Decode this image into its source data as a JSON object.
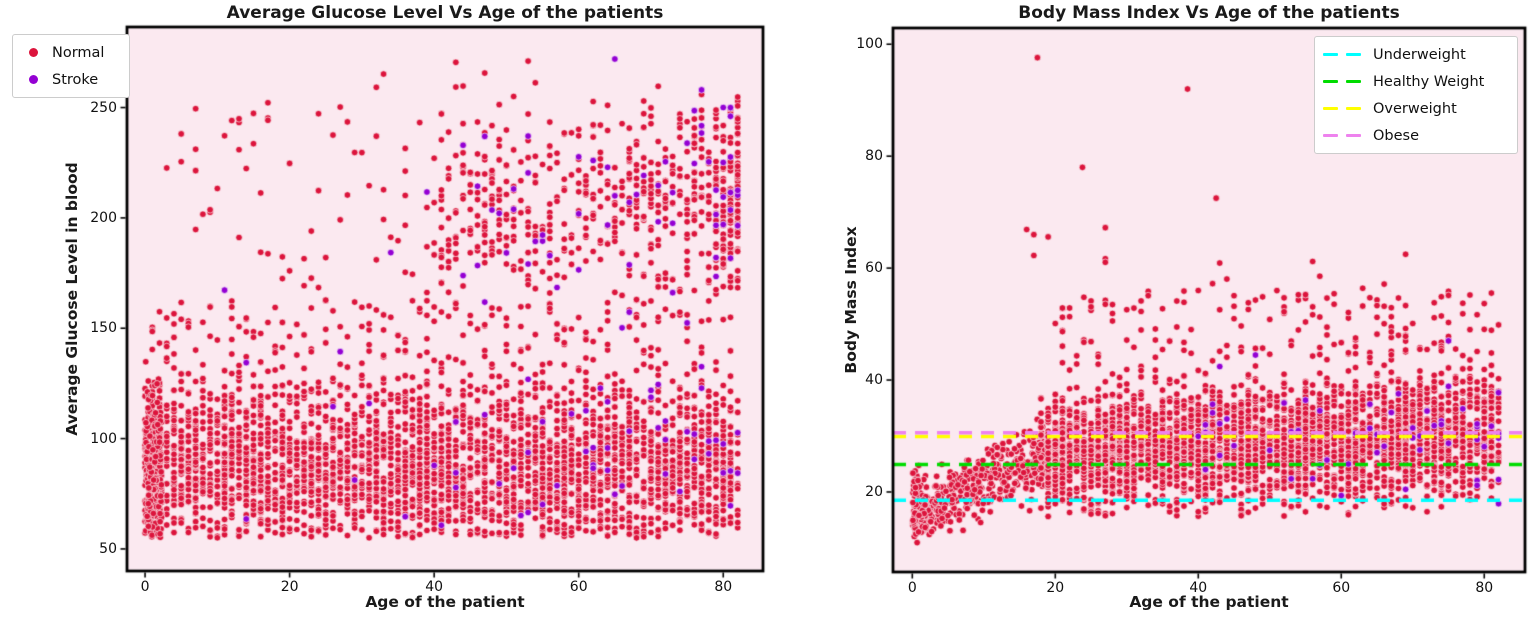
{
  "figure": {
    "background": "#FFFFFF",
    "axes_background": "#FBE9F0",
    "spine_color": "#000000",
    "text_color": "#1A1A1A",
    "legend_background": "#FFFFFF",
    "legend_border": "#CCCCCC",
    "normal_color": "#DC143C",
    "stroke_color": "#9400D3"
  },
  "chart_data": [
    {
      "type": "scatter",
      "title": "Average Glucose Level Vs Age of the patients",
      "xlabel": "Age of the patient",
      "ylabel": "Average Glucose Level in blood",
      "xlim": [
        -2.5,
        85.5
      ],
      "ylim": [
        40,
        286.5
      ],
      "xticks": [
        0,
        20,
        40,
        60,
        80
      ],
      "yticks": [
        50,
        100,
        150,
        200,
        250
      ],
      "grid": false,
      "legend": {
        "position": "outside upper left",
        "items": [
          {
            "label": "Normal",
            "color": "#DC143C",
            "marker": "dot"
          },
          {
            "label": "Stroke",
            "color": "#9400D3",
            "marker": "dot"
          }
        ]
      },
      "series": [
        {
          "name": "Normal",
          "color": "#DC143C",
          "clusters": [
            {
              "n": 2300,
              "x": {
                "min": 0,
                "max": 82,
                "int": true
              },
              "y": {
                "dist": "gauss",
                "mean": 86,
                "sd": 17,
                "min": 55,
                "max": 130
              }
            },
            {
              "n": 750,
              "x": {
                "min": 0,
                "max": 82,
                "int": true
              },
              "y": {
                "dist": "uniform",
                "min": 55,
                "max": 126
              }
            },
            {
              "n": 280,
              "x": {
                "min": 0.08,
                "max": 2.3
              },
              "y": {
                "dist": "gauss",
                "mean": 86,
                "sd": 20,
                "min": 55,
                "max": 135
              }
            },
            {
              "n": 240,
              "x": {
                "min": 0,
                "max": 82,
                "int": true
              },
              "y": {
                "dist": "uniform",
                "min": 127,
                "max": 163
              }
            },
            {
              "n": 620,
              "x": {
                "min": 40,
                "max": 82,
                "int": true,
                "pow": 1.7
              },
              "y": {
                "dist": "gauss",
                "mean": 206,
                "sd": 24,
                "min": 164,
                "max": 257
              }
            },
            {
              "n": 80,
              "x": {
                "min": 2,
                "max": 48,
                "int": true
              },
              "y": {
                "dist": "uniform",
                "min": 165,
                "max": 254
              }
            },
            {
              "n": 9,
              "x": {
                "min": 25,
                "max": 78,
                "int": true
              },
              "y": {
                "dist": "uniform",
                "min": 257,
                "max": 272
              }
            }
          ],
          "points": []
        },
        {
          "name": "Stroke",
          "color": "#9400D3",
          "clusters": [
            {
              "n": 48,
              "x": {
                "min": 38,
                "max": 82,
                "int": true,
                "pow": 1.8
              },
              "y": {
                "dist": "gauss",
                "mean": 98,
                "sd": 24,
                "min": 57,
                "max": 142
              }
            },
            {
              "n": 62,
              "x": {
                "min": 42,
                "max": 82,
                "int": true,
                "pow": 1.6
              },
              "y": {
                "dist": "gauss",
                "mean": 208,
                "sd": 27,
                "min": 150,
                "max": 253
              }
            },
            {
              "n": 13,
              "x": {
                "min": 8,
                "max": 62,
                "int": true
              },
              "y": {
                "dist": "uniform",
                "min": 60,
                "max": 235
              }
            }
          ],
          "points": [
            [
              65,
              272
            ],
            [
              77,
              258
            ],
            [
              80,
              250
            ]
          ]
        }
      ]
    },
    {
      "type": "scatter",
      "title": "Body Mass Index Vs Age of the patients",
      "xlabel": "Age of the patient",
      "ylabel": "Body Mass Index",
      "xlim": [
        -2.7,
        85.7
      ],
      "ylim": [
        5.7,
        102.9
      ],
      "xticks": [
        0,
        20,
        40,
        60,
        80
      ],
      "yticks": [
        20,
        40,
        60,
        80,
        100
      ],
      "grid": false,
      "legend": {
        "position": "upper right",
        "items": [
          {
            "label": "Underweight",
            "color": "#00FFFF",
            "marker": "dashed-line"
          },
          {
            "label": "Healthy Weight",
            "color": "#00DC00",
            "marker": "dashed-line"
          },
          {
            "label": "Overweight",
            "color": "#FFFF00",
            "marker": "dashed-line"
          },
          {
            "label": "Obese",
            "color": "#EE82EE",
            "marker": "dashed-line"
          }
        ]
      },
      "hlines": [
        {
          "label": "Underweight",
          "y": 18.5,
          "color": "#00FFFF",
          "style": "dashed"
        },
        {
          "label": "Healthy Weight",
          "y": 24.9,
          "color": "#00DC00",
          "style": "dashed"
        },
        {
          "label": "Overweight",
          "y": 29.9,
          "color": "#FFFF00",
          "style": "dashed"
        },
        {
          "label": "Obese",
          "y": 30.6,
          "color": "#EE82EE",
          "style": "dashed"
        }
      ],
      "series": [
        {
          "name": "Normal",
          "color": "#DC143C",
          "clusters": [
            {
              "n": 430,
              "x": {
                "min": 0.08,
                "max": 19
              },
              "y": {
                "dist": "lin",
                "a": 15.5,
                "b": 0.6,
                "sd": 3.0,
                "min": 10.5,
                "max": 42
              }
            },
            {
              "n": 100,
              "x": {
                "min": 0.08,
                "max": 2
              },
              "y": {
                "dist": "gauss",
                "mean": 17,
                "sd": 2.6,
                "min": 11,
                "max": 26
              }
            },
            {
              "n": 3200,
              "x": {
                "min": 18,
                "max": 82,
                "int": true
              },
              "y": {
                "dist": "lin",
                "a": 25,
                "b": 0.07,
                "sd": 5.5,
                "min": 15.5,
                "max": 52
              }
            },
            {
              "n": 150,
              "x": {
                "min": 20,
                "max": 82,
                "int": true
              },
              "y": {
                "dist": "uniform",
                "min": 44,
                "max": 56
              }
            },
            {
              "n": 16,
              "x": {
                "min": 15,
                "max": 72,
                "int": true
              },
              "y": {
                "dist": "uniform",
                "min": 55,
                "max": 68
              }
            }
          ],
          "points": [
            [
              17.5,
              97.6
            ],
            [
              38.5,
              92
            ],
            [
              23.8,
              78
            ],
            [
              42.5,
              72.5
            ]
          ]
        },
        {
          "name": "Stroke",
          "color": "#9400D3",
          "clusters": [
            {
              "n": 55,
              "x": {
                "min": 40,
                "max": 82,
                "int": true,
                "pow": 1.5
              },
              "y": {
                "dist": "gauss",
                "mean": 30,
                "sd": 6.5,
                "min": 16,
                "max": 48
              }
            }
          ],
          "points": [
            [
              75,
              47
            ],
            [
              82,
              17.9
            ]
          ]
        }
      ]
    }
  ]
}
